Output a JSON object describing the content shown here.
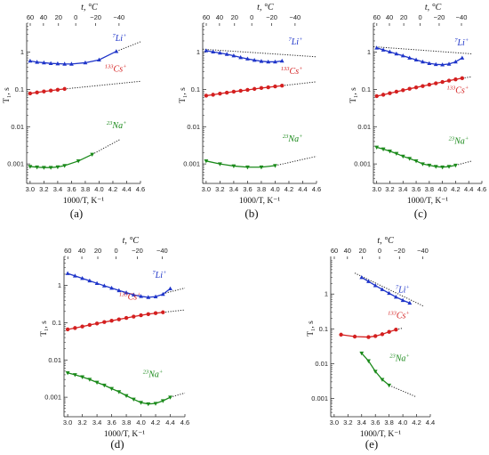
{
  "figure": {
    "panel_labels": [
      "(a)",
      "(b)",
      "(c)",
      "(d)",
      "(e)"
    ]
  },
  "chart_data": [
    {
      "type": "line",
      "panel": "(a)",
      "xlabel": "1000/T, K⁻¹",
      "ylabel": "T₁, s",
      "top_axis_label": "t, °C",
      "top_ticks": [
        "60",
        "40",
        "20",
        "0",
        "−20",
        "−40"
      ],
      "x_ticks": [
        "3.0",
        "3.2",
        "3.4",
        "3.6",
        "3.8",
        "4.0",
        "4.2",
        "4.4",
        "4.6"
      ],
      "y_ticks": [
        "1",
        "0.1",
        "0.01",
        "0.001"
      ],
      "xlim": [
        2.95,
        4.6
      ],
      "ylim": [
        0.0003,
        6
      ],
      "yscale": "log",
      "series": [
        {
          "name": "⁷Li⁺",
          "sup": "7",
          "ion": "Li",
          "color": "#1f35c9",
          "marker": "tri-up",
          "x": [
            3.0,
            3.1,
            3.2,
            3.3,
            3.4,
            3.5,
            3.6,
            3.8,
            4.0,
            4.25
          ],
          "y": [
            0.58,
            0.54,
            0.52,
            0.5,
            0.49,
            0.48,
            0.48,
            0.52,
            0.62,
            1.05
          ],
          "fit_x": [
            4.25,
            4.6
          ],
          "fit_y": [
            1.05,
            1.9
          ],
          "label_pos": [
            4.4,
            2.0
          ]
        },
        {
          "name": "¹³³Cs⁺",
          "sup": "133",
          "ion": "Cs",
          "color": "#d42020",
          "marker": "circle",
          "x": [
            3.0,
            3.1,
            3.2,
            3.3,
            3.4,
            3.5
          ],
          "y": [
            0.078,
            0.083,
            0.088,
            0.093,
            0.098,
            0.103
          ],
          "fit_x": [
            3.5,
            4.6
          ],
          "fit_y": [
            0.103,
            0.165
          ],
          "label_pos": [
            4.4,
            0.3
          ]
        },
        {
          "name": "²³Na⁺",
          "sup": "23",
          "ion": "Na",
          "color": "#1b8a1b",
          "marker": "tri-down",
          "x": [
            3.0,
            3.1,
            3.2,
            3.3,
            3.4,
            3.5,
            3.7,
            3.9
          ],
          "y": [
            0.00085,
            0.00082,
            0.0008,
            0.0008,
            0.00083,
            0.0009,
            0.0012,
            0.0018
          ],
          "fit_x": [
            3.9,
            4.3
          ],
          "fit_y": [
            0.0018,
            0.0045
          ],
          "label_pos": [
            4.4,
            0.009
          ]
        }
      ]
    },
    {
      "type": "line",
      "panel": "(b)",
      "xlabel": "1000/T, K⁻¹",
      "ylabel": "T₁, s",
      "top_axis_label": "t, °C",
      "top_ticks": [
        "60",
        "40",
        "20",
        "0",
        "−20",
        "−40"
      ],
      "x_ticks": [
        "3.0",
        "3.2",
        "3.4",
        "3.6",
        "3.8",
        "4.0",
        "4.2",
        "4.4",
        "4.6"
      ],
      "y_ticks": [
        "1",
        "0.1",
        "0.01",
        "0.001"
      ],
      "xlim": [
        2.95,
        4.6
      ],
      "ylim": [
        0.0003,
        6
      ],
      "yscale": "log",
      "series": [
        {
          "name": "⁷Li⁺",
          "sup": "7",
          "ion": "Li",
          "color": "#1f35c9",
          "marker": "tri-up",
          "x": [
            3.0,
            3.1,
            3.2,
            3.3,
            3.4,
            3.5,
            3.6,
            3.7,
            3.8,
            3.9,
            4.0,
            4.1
          ],
          "y": [
            1.1,
            1.02,
            0.95,
            0.88,
            0.8,
            0.72,
            0.66,
            0.61,
            0.57,
            0.55,
            0.55,
            0.58
          ],
          "fit_x": [
            2.95,
            4.6
          ],
          "fit_y": [
            1.2,
            0.75
          ],
          "label_pos": [
            4.4,
            1.6
          ]
        },
        {
          "name": "¹³³Cs⁺",
          "sup": "133",
          "ion": "Cs",
          "color": "#d42020",
          "marker": "circle",
          "x": [
            3.0,
            3.1,
            3.2,
            3.3,
            3.4,
            3.5,
            3.6,
            3.7,
            3.8,
            3.9,
            4.0,
            4.1
          ],
          "y": [
            0.068,
            0.072,
            0.077,
            0.082,
            0.087,
            0.092,
            0.097,
            0.103,
            0.109,
            0.114,
            0.12,
            0.126
          ],
          "fit_x": [
            4.1,
            4.6
          ],
          "fit_y": [
            0.126,
            0.16
          ],
          "label_pos": [
            4.4,
            0.26
          ]
        },
        {
          "name": "²³Na⁺",
          "sup": "23",
          "ion": "Na",
          "color": "#1b8a1b",
          "marker": "tri-down",
          "x": [
            3.0,
            3.2,
            3.4,
            3.6,
            3.8,
            4.0
          ],
          "y": [
            0.0012,
            0.001,
            0.00088,
            0.00082,
            0.00082,
            0.0009
          ],
          "fit_x": [
            4.0,
            4.6
          ],
          "fit_y": [
            0.0009,
            0.0016
          ],
          "label_pos": [
            4.4,
            0.004
          ]
        }
      ]
    },
    {
      "type": "line",
      "panel": "(c)",
      "xlabel": "1000/T, K⁻¹",
      "ylabel": "T₁, s",
      "top_axis_label": "t, °C",
      "top_ticks": [
        "60",
        "40",
        "20",
        "0",
        "−20",
        "−40"
      ],
      "x_ticks": [
        "3.0",
        "3.2",
        "3.4",
        "3.6",
        "3.8",
        "4.0",
        "4.2",
        "4.4",
        "4.6"
      ],
      "y_ticks": [
        "1",
        "0.1",
        "0.01",
        "0.001"
      ],
      "xlim": [
        2.95,
        4.6
      ],
      "ylim": [
        0.0003,
        6
      ],
      "yscale": "log",
      "series": [
        {
          "name": "⁷Li⁺",
          "sup": "7",
          "ion": "Li",
          "color": "#1f35c9",
          "marker": "tri-up",
          "x": [
            3.0,
            3.1,
            3.2,
            3.3,
            3.4,
            3.5,
            3.6,
            3.7,
            3.8,
            3.9,
            4.0,
            4.1,
            4.2,
            4.3
          ],
          "y": [
            1.3,
            1.15,
            1.02,
            0.9,
            0.8,
            0.7,
            0.62,
            0.55,
            0.5,
            0.47,
            0.46,
            0.48,
            0.55,
            0.7
          ],
          "fit_x": [
            2.95,
            4.45
          ],
          "fit_y": [
            1.4,
            0.9
          ],
          "label_pos": [
            4.4,
            1.5
          ]
        },
        {
          "name": "¹³³Cs⁺",
          "sup": "133",
          "ion": "Cs",
          "color": "#d42020",
          "marker": "circle",
          "x": [
            3.0,
            3.1,
            3.2,
            3.3,
            3.4,
            3.5,
            3.6,
            3.7,
            3.8,
            3.9,
            4.0,
            4.1,
            4.2,
            4.3
          ],
          "y": [
            0.066,
            0.072,
            0.079,
            0.087,
            0.095,
            0.104,
            0.113,
            0.123,
            0.134,
            0.146,
            0.158,
            0.172,
            0.186,
            0.2
          ],
          "fit_x": [
            4.3,
            4.45
          ],
          "fit_y": [
            0.2,
            0.22
          ],
          "label_pos": [
            4.4,
            0.08
          ]
        },
        {
          "name": "²³Na⁺",
          "sup": "23",
          "ion": "Na",
          "color": "#1b8a1b",
          "marker": "tri-down",
          "x": [
            3.0,
            3.1,
            3.2,
            3.3,
            3.4,
            3.5,
            3.6,
            3.7,
            3.8,
            3.9,
            4.0,
            4.1,
            4.2
          ],
          "y": [
            0.0028,
            0.0025,
            0.0022,
            0.0019,
            0.0016,
            0.0014,
            0.0012,
            0.001,
            0.00092,
            0.00085,
            0.00082,
            0.00085,
            0.00092
          ],
          "fit_x": [
            4.2,
            4.45
          ],
          "fit_y": [
            0.00092,
            0.0012
          ],
          "label_pos": [
            4.4,
            0.0035
          ]
        }
      ]
    },
    {
      "type": "line",
      "panel": "(d)",
      "xlabel": "1000/T, K⁻¹",
      "ylabel": "T₁, s",
      "top_axis_label": "t, °C",
      "top_ticks": [
        "60",
        "40",
        "20",
        "0",
        "−20",
        "−40"
      ],
      "x_ticks": [
        "3.0",
        "3.2",
        "3.4",
        "3.6",
        "3.8",
        "4.0",
        "4.2",
        "4.4",
        "4.6"
      ],
      "y_ticks": [
        "1",
        "0.1",
        "0.01",
        "0.001"
      ],
      "xlim": [
        2.95,
        4.6
      ],
      "ylim": [
        0.0003,
        6
      ],
      "yscale": "log",
      "series": [
        {
          "name": "⁷Li⁺",
          "sup": "7",
          "ion": "Li",
          "color": "#1f35c9",
          "marker": "tri-up",
          "x": [
            3.0,
            3.1,
            3.2,
            3.3,
            3.4,
            3.5,
            3.6,
            3.7,
            3.8,
            3.9,
            4.0,
            4.1,
            4.2,
            4.3,
            4.4
          ],
          "y": [
            2.1,
            1.8,
            1.55,
            1.33,
            1.14,
            0.98,
            0.85,
            0.73,
            0.64,
            0.56,
            0.51,
            0.48,
            0.5,
            0.58,
            0.82
          ],
          "fit_x": [
            4.3,
            4.6
          ],
          "fit_y": [
            0.6,
            0.85
          ],
          "label_pos": [
            4.35,
            1.6
          ]
        },
        {
          "name": "¹³³Cs⁺",
          "sup": "133",
          "ion": "Cs",
          "color": "#d42020",
          "marker": "circle",
          "x": [
            3.0,
            3.1,
            3.2,
            3.3,
            3.4,
            3.5,
            3.6,
            3.7,
            3.8,
            3.9,
            4.0,
            4.1,
            4.2,
            4.3
          ],
          "y": [
            0.066,
            0.072,
            0.079,
            0.087,
            0.095,
            0.104,
            0.113,
            0.123,
            0.134,
            0.146,
            0.158,
            0.17,
            0.18,
            0.19
          ],
          "fit_x": [
            4.3,
            4.6
          ],
          "fit_y": [
            0.19,
            0.22
          ],
          "label_pos": [
            4.0,
            0.42
          ]
        },
        {
          "name": "²³Na⁺",
          "sup": "23",
          "ion": "Na",
          "color": "#1b8a1b",
          "marker": "tri-down",
          "x": [
            3.0,
            3.1,
            3.2,
            3.3,
            3.4,
            3.5,
            3.6,
            3.7,
            3.8,
            3.9,
            4.0,
            4.1,
            4.2,
            4.3,
            4.4
          ],
          "y": [
            0.0045,
            0.004,
            0.0035,
            0.003,
            0.0025,
            0.0021,
            0.0017,
            0.0014,
            0.0011,
            0.00088,
            0.00072,
            0.00066,
            0.00068,
            0.0008,
            0.001
          ],
          "fit_x": [
            4.4,
            4.6
          ],
          "fit_y": [
            0.001,
            0.0013
          ],
          "label_pos": [
            4.3,
            0.0035
          ]
        }
      ]
    },
    {
      "type": "line",
      "panel": "(e)",
      "xlabel": "1000/T, K⁻¹",
      "ylabel": "T₁, s",
      "top_axis_label": "t, °C",
      "top_ticks": [
        "60",
        "40",
        "20",
        "0",
        "−20",
        "−40"
      ],
      "x_ticks": [
        "3.0",
        "3.2",
        "3.4",
        "3.6",
        "3.8",
        "4.0",
        "4.2",
        "4.4"
      ],
      "y_ticks": [
        "1",
        "0.1",
        "0.01",
        "0.001"
      ],
      "xlim": [
        2.95,
        4.4
      ],
      "ylim": [
        0.0003,
        12
      ],
      "yscale": "log",
      "series": [
        {
          "name": "⁷Li⁺",
          "sup": "7",
          "ion": "Li",
          "color": "#1f35c9",
          "marker": "tri-up",
          "x": [
            3.4,
            3.5,
            3.6,
            3.7,
            3.8,
            3.9,
            4.0,
            4.1
          ],
          "y": [
            3.0,
            2.3,
            1.75,
            1.35,
            1.05,
            0.82,
            0.66,
            0.55
          ],
          "fit_x": [
            3.3,
            4.3
          ],
          "fit_y": [
            4.0,
            0.45
          ],
          "label_pos": [
            4.1,
            1.1
          ]
        },
        {
          "name": "¹³³Cs⁺",
          "sup": "133",
          "ion": "Cs",
          "color": "#d42020",
          "marker": "circle",
          "x": [
            3.1,
            3.3,
            3.5,
            3.6,
            3.7,
            3.8,
            3.9
          ],
          "y": [
            0.068,
            0.06,
            0.058,
            0.062,
            0.07,
            0.082,
            0.095
          ],
          "fit_x": [
            3.9,
            4.0
          ],
          "fit_y": [
            0.095,
            0.105
          ],
          "label_pos": [
            4.1,
            0.2
          ]
        },
        {
          "name": "²³Na⁺",
          "sup": "23",
          "ion": "Na",
          "color": "#1b8a1b",
          "marker": "tri-down",
          "x": [
            3.4,
            3.5,
            3.6,
            3.7,
            3.8
          ],
          "y": [
            0.02,
            0.012,
            0.006,
            0.0035,
            0.0024
          ],
          "fit_x": [
            3.8,
            4.2
          ],
          "fit_y": [
            0.0024,
            0.0011
          ],
          "label_pos": [
            4.1,
            0.012
          ]
        }
      ]
    }
  ]
}
